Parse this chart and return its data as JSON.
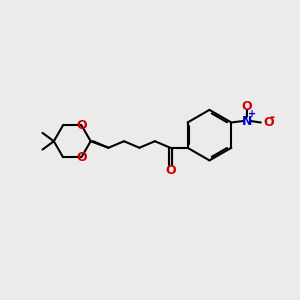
{
  "bg_color": "#ebebeb",
  "bond_color": "black",
  "oxygen_color": "#cc0000",
  "nitrogen_color": "#0000cc",
  "line_width": 1.5,
  "font_size_atom": 9,
  "figsize": [
    3.0,
    3.0
  ],
  "dpi": 100,
  "xlim": [
    0,
    10
  ],
  "ylim": [
    0,
    10
  ]
}
